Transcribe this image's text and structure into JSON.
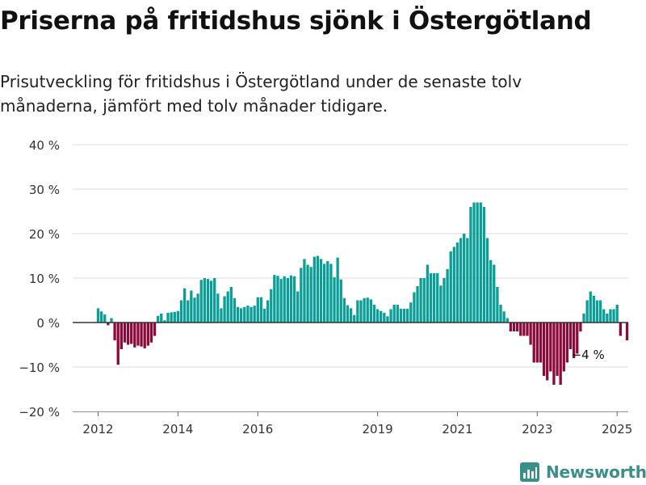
{
  "title": "Priserna på fritidshus sjönk i Östergötland",
  "subtitle": "Prisutveckling för fritidshus i Östergötland under de senaste tolv månaderna, jämfört med tolv månader tidigare.",
  "brand": "Newsworthy",
  "colors": {
    "positive": "#0a9e96",
    "negative": "#8c0a3a",
    "grid": "#dddddd",
    "zero_line": "#333333",
    "brand": "#3a8f8a"
  },
  "chart_data": {
    "type": "bar",
    "title": "Priserna på fritidshus sjönk i Östergötland",
    "xlabel": "",
    "ylabel": "",
    "ylim": [
      -20,
      40
    ],
    "y_ticks": [
      {
        "value": 40,
        "label": "40 %"
      },
      {
        "value": 30,
        "label": "30 %"
      },
      {
        "value": 20,
        "label": "20 %"
      },
      {
        "value": 10,
        "label": "10 %"
      },
      {
        "value": 0,
        "label": "0 %"
      },
      {
        "value": -10,
        "label": "−10 %"
      },
      {
        "value": -20,
        "label": "−20 %"
      }
    ],
    "x_start_year": 2012,
    "x_ticks": [
      2012,
      2014,
      2016,
      2019,
      2021,
      2023,
      2025
    ],
    "annotation": {
      "label": "−4 %",
      "index": 147
    },
    "values": [
      3.2,
      2.5,
      1.8,
      -0.6,
      1.0,
      -4.0,
      -9.5,
      -6.0,
      -4.5,
      -5.0,
      -4.8,
      -5.6,
      -5.2,
      -5.4,
      -5.8,
      -5.2,
      -4.5,
      -3.0,
      1.5,
      2.0,
      0.5,
      2.2,
      2.3,
      2.4,
      2.6,
      5.0,
      7.7,
      5.0,
      7.2,
      5.6,
      6.5,
      9.6,
      10.0,
      9.8,
      9.4,
      10.0,
      6.5,
      3.2,
      5.9,
      7.0,
      8.0,
      5.5,
      3.5,
      3.2,
      3.5,
      3.8,
      3.5,
      3.8,
      5.7,
      5.7,
      3.1,
      5.0,
      7.5,
      10.7,
      10.5,
      9.8,
      10.4,
      10.0,
      10.6,
      10.4,
      7.0,
      12.3,
      14.3,
      13.0,
      12.5,
      14.8,
      15.0,
      14.3,
      13.2,
      13.8,
      13.2,
      10.2,
      14.6,
      9.7,
      5.5,
      3.9,
      3.2,
      1.7,
      5.0,
      5.0,
      5.5,
      5.6,
      5.2,
      4.0,
      3.0,
      2.6,
      2.2,
      1.4,
      3.0,
      4.0,
      4.0,
      3.1,
      3.1,
      3.1,
      4.5,
      6.8,
      8.2,
      10.0,
      10.0,
      13.0,
      11.1,
      11.1,
      11.1,
      8.3,
      10.0,
      12.0,
      16.0,
      17.0,
      18.0,
      19.0,
      20.0,
      19.0,
      26.0,
      27.0,
      27.0,
      27.0,
      26.0,
      19.0,
      14.0,
      13.0,
      8.0,
      4.0,
      2.5,
      1.0,
      -2.0,
      -2.0,
      -2.0,
      -3.0,
      -3.0,
      -3.0,
      -5.0,
      -9.0,
      -9.0,
      -9.0,
      -12.0,
      -13.0,
      -11.0,
      -14.0,
      -12.0,
      -14.0,
      -11.0,
      -9.0,
      -6.0,
      -8.0,
      -7.0,
      -2.0,
      2.0,
      5.0,
      7.0,
      6.0,
      5.0,
      5.0,
      3.0,
      2.0,
      3.0,
      3.0,
      4.0,
      -3.0,
      null,
      -4.0
    ]
  }
}
